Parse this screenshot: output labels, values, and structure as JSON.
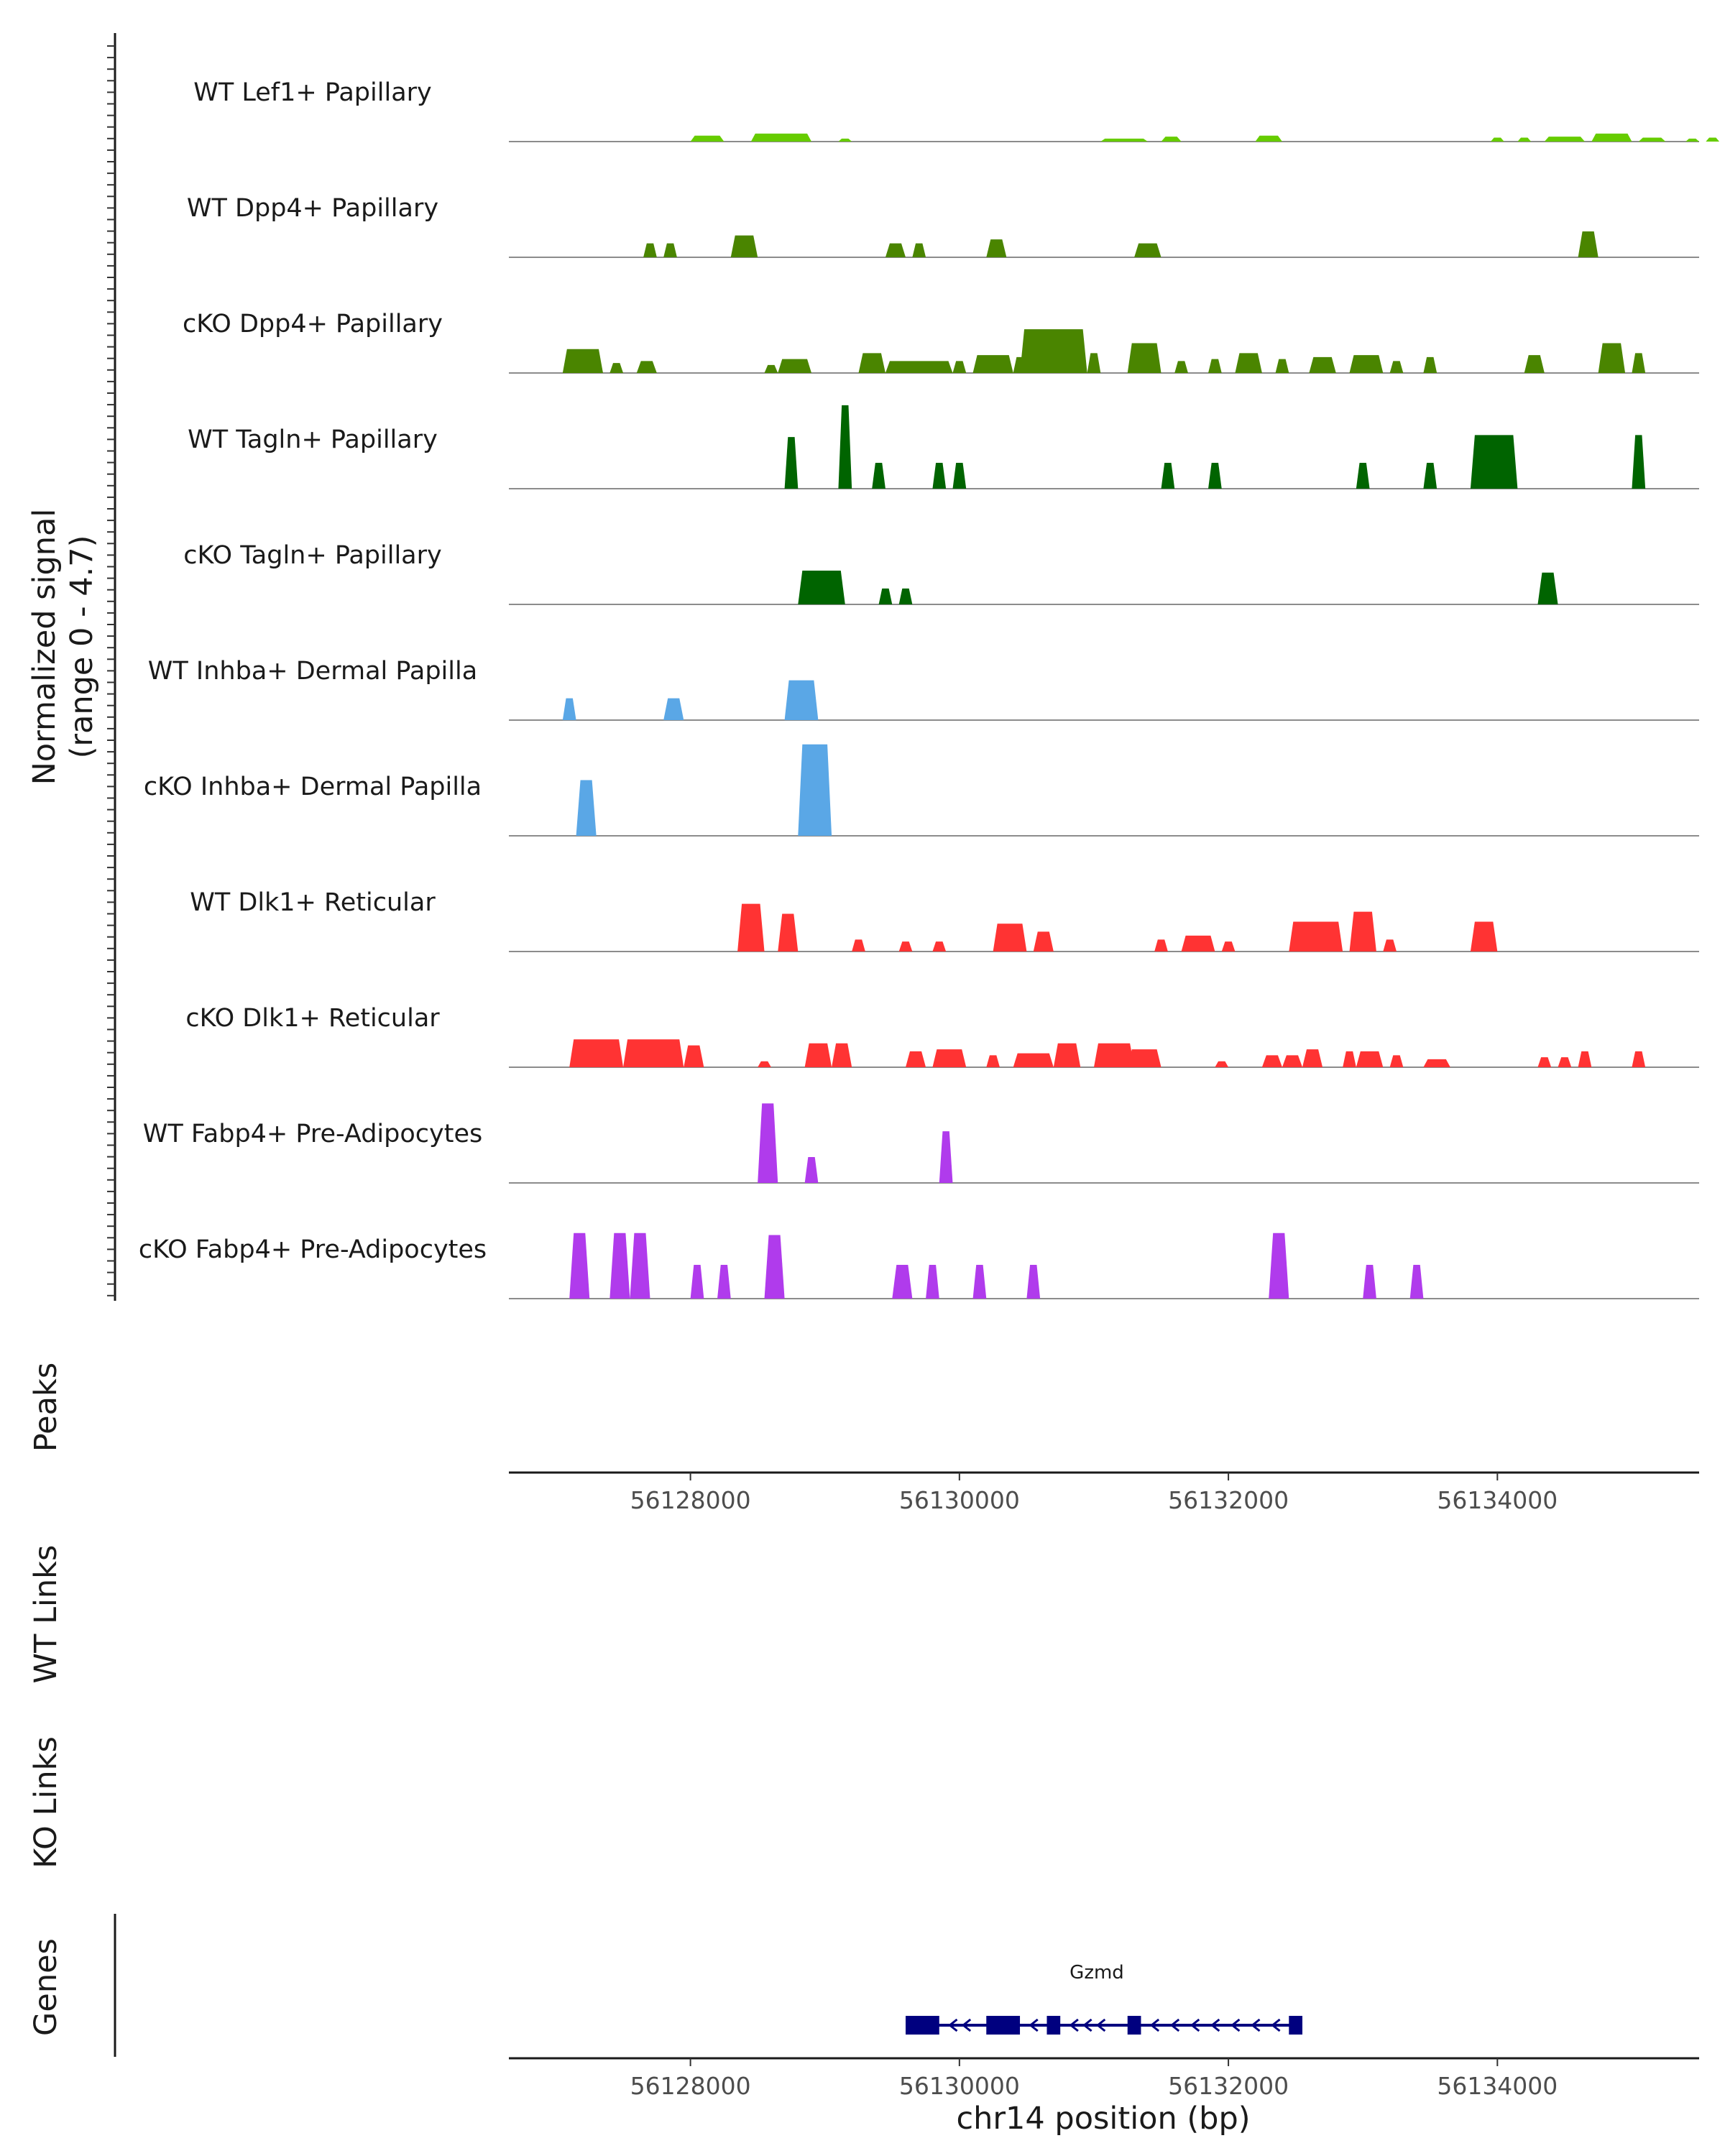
{
  "chart_data": {
    "type": "area",
    "genomic_range": [
      56126650,
      56135500
    ],
    "xlabel": "chr14 position (bp)",
    "x_ticks": [
      56128000,
      56130000,
      56132000,
      56134000
    ],
    "x_tick_labels": [
      "56128000",
      "56130000",
      "56132000",
      "56134000"
    ],
    "signal_axis": {
      "title_line1": "Normalized signal",
      "title_line2": "(range 0 - 4.7)",
      "range": [
        0,
        4.7
      ]
    },
    "peaks_label": "Peaks",
    "wt_links_label": "WT Links",
    "ko_links_label": "KO Links",
    "genes_label": "Genes",
    "tracks": [
      {
        "name": "WT Lef1+ Papillary",
        "color": "#66cc00",
        "blocks": [
          [
            56128000,
            56128250,
            0.3
          ],
          [
            56128450,
            56128900,
            0.4
          ],
          [
            56129100,
            56129200,
            0.15
          ],
          [
            56131050,
            56131400,
            0.15
          ],
          [
            56131500,
            56131650,
            0.25
          ],
          [
            56132200,
            56132400,
            0.3
          ],
          [
            56133950,
            56134050,
            0.2
          ],
          [
            56134150,
            56134250,
            0.2
          ],
          [
            56134350,
            56134650,
            0.25
          ],
          [
            56134700,
            56135000,
            0.4
          ],
          [
            56135050,
            56135250,
            0.2
          ],
          [
            56135400,
            56135500,
            0.15
          ],
          [
            56135550,
            56135650,
            0.2
          ]
        ]
      },
      {
        "name": "WT Dpp4+ Papillary",
        "color": "#4a8500",
        "blocks": [
          [
            56127650,
            56127750,
            0.7
          ],
          [
            56127800,
            56127900,
            0.7
          ],
          [
            56128300,
            56128500,
            1.1
          ],
          [
            56129450,
            56129600,
            0.7
          ],
          [
            56129650,
            56129750,
            0.7
          ],
          [
            56130200,
            56130350,
            0.9
          ],
          [
            56131300,
            56131500,
            0.7
          ],
          [
            56134600,
            56134750,
            1.3
          ]
        ]
      },
      {
        "name": "cKO Dpp4+ Papillary",
        "color": "#4a8500",
        "blocks": [
          [
            56127050,
            56127350,
            1.2
          ],
          [
            56127400,
            56127500,
            0.5
          ],
          [
            56127600,
            56127750,
            0.6
          ],
          [
            56128550,
            56128650,
            0.4
          ],
          [
            56128650,
            56128900,
            0.7
          ],
          [
            56129250,
            56129450,
            1.0
          ],
          [
            56129450,
            56129950,
            0.6
          ],
          [
            56129950,
            56130050,
            0.6
          ],
          [
            56130100,
            56130400,
            0.9
          ],
          [
            56130400,
            56130500,
            0.8
          ],
          [
            56130450,
            56130950,
            2.2
          ],
          [
            56130950,
            56131050,
            1.0
          ],
          [
            56131250,
            56131500,
            1.5
          ],
          [
            56131600,
            56131700,
            0.6
          ],
          [
            56131850,
            56131950,
            0.7
          ],
          [
            56132050,
            56132250,
            1.0
          ],
          [
            56132350,
            56132450,
            0.7
          ],
          [
            56132600,
            56132800,
            0.8
          ],
          [
            56132900,
            56133150,
            0.9
          ],
          [
            56133200,
            56133300,
            0.6
          ],
          [
            56133450,
            56133550,
            0.8
          ],
          [
            56134200,
            56134350,
            0.9
          ],
          [
            56134750,
            56134950,
            1.5
          ],
          [
            56135000,
            56135100,
            1.0
          ]
        ]
      },
      {
        "name": "WT Tagln+ Papillary",
        "color": "#006400",
        "blocks": [
          [
            56128700,
            56128800,
            2.6
          ],
          [
            56129100,
            56129200,
            4.2
          ],
          [
            56129350,
            56129450,
            1.3
          ],
          [
            56129800,
            56129900,
            1.3
          ],
          [
            56129950,
            56130050,
            1.3
          ],
          [
            56131500,
            56131600,
            1.3
          ],
          [
            56131850,
            56131950,
            1.3
          ],
          [
            56132950,
            56133050,
            1.3
          ],
          [
            56133450,
            56133550,
            1.3
          ],
          [
            56133800,
            56134150,
            2.7
          ],
          [
            56135000,
            56135100,
            2.7
          ]
        ]
      },
      {
        "name": "cKO Tagln+ Papillary",
        "color": "#006400",
        "blocks": [
          [
            56128800,
            56129150,
            1.7
          ],
          [
            56129400,
            56129500,
            0.8
          ],
          [
            56129550,
            56129650,
            0.8
          ],
          [
            56134300,
            56134450,
            1.6
          ]
        ]
      },
      {
        "name": "WT Inhba+ Dermal Papilla",
        "color": "#5aa7e6",
        "blocks": [
          [
            56127050,
            56127150,
            1.1
          ],
          [
            56127800,
            56127950,
            1.1
          ],
          [
            56128700,
            56128950,
            2.0
          ]
        ]
      },
      {
        "name": "cKO Inhba+ Dermal Papilla",
        "color": "#5aa7e6",
        "blocks": [
          [
            56127150,
            56127300,
            2.8
          ],
          [
            56128800,
            56129050,
            4.6
          ]
        ]
      },
      {
        "name": "WT Dlk1+ Reticular",
        "color": "#ff3333",
        "blocks": [
          [
            56128350,
            56128550,
            2.4
          ],
          [
            56128650,
            56128800,
            1.9
          ],
          [
            56129200,
            56129300,
            0.6
          ],
          [
            56129550,
            56129650,
            0.5
          ],
          [
            56129800,
            56129900,
            0.5
          ],
          [
            56130250,
            56130500,
            1.4
          ],
          [
            56130550,
            56130700,
            1.0
          ],
          [
            56131450,
            56131550,
            0.6
          ],
          [
            56131650,
            56131900,
            0.8
          ],
          [
            56131950,
            56132050,
            0.5
          ],
          [
            56132450,
            56132850,
            1.5
          ],
          [
            56132900,
            56133100,
            2.0
          ],
          [
            56133150,
            56133250,
            0.6
          ],
          [
            56133800,
            56134000,
            1.5
          ]
        ]
      },
      {
        "name": "cKO Dlk1+ Reticular",
        "color": "#ff3333",
        "blocks": [
          [
            56127100,
            56127500,
            1.4
          ],
          [
            56127500,
            56127950,
            1.4
          ],
          [
            56127950,
            56128100,
            1.1
          ],
          [
            56128500,
            56128600,
            0.3
          ],
          [
            56128850,
            56129050,
            1.2
          ],
          [
            56129050,
            56129200,
            1.2
          ],
          [
            56129600,
            56129750,
            0.8
          ],
          [
            56129800,
            56130050,
            0.9
          ],
          [
            56130200,
            56130300,
            0.6
          ],
          [
            56130400,
            56130700,
            0.7
          ],
          [
            56130700,
            56130900,
            1.2
          ],
          [
            56131000,
            56131300,
            1.2
          ],
          [
            56131250,
            56131500,
            0.9
          ],
          [
            56131900,
            56132000,
            0.3
          ],
          [
            56132250,
            56132400,
            0.6
          ],
          [
            56132400,
            56132550,
            0.6
          ],
          [
            56132550,
            56132700,
            0.9
          ],
          [
            56132850,
            56132950,
            0.8
          ],
          [
            56132950,
            56133150,
            0.8
          ],
          [
            56133200,
            56133300,
            0.6
          ],
          [
            56133450,
            56133650,
            0.4
          ],
          [
            56134300,
            56134400,
            0.5
          ],
          [
            56134450,
            56134550,
            0.5
          ],
          [
            56134600,
            56134700,
            0.8
          ],
          [
            56135000,
            56135100,
            0.8
          ]
        ]
      },
      {
        "name": "WT Fabp4+ Pre-Adipocytes",
        "color": "#b03bec",
        "blocks": [
          [
            56128500,
            56128650,
            4.0
          ],
          [
            56128850,
            56128950,
            1.3
          ],
          [
            56129850,
            56129950,
            2.6
          ]
        ]
      },
      {
        "name": "cKO Fabp4+ Pre-Adipocytes",
        "color": "#b03bec",
        "blocks": [
          [
            56127100,
            56127250,
            3.3
          ],
          [
            56127400,
            56127550,
            3.3
          ],
          [
            56127550,
            56127700,
            3.3
          ],
          [
            56128000,
            56128100,
            1.7
          ],
          [
            56128200,
            56128300,
            1.7
          ],
          [
            56128550,
            56128700,
            3.2
          ],
          [
            56129500,
            56129650,
            1.7
          ],
          [
            56129750,
            56129850,
            1.7
          ],
          [
            56130100,
            56130200,
            1.7
          ],
          [
            56130500,
            56130600,
            1.7
          ],
          [
            56132300,
            56132450,
            3.3
          ],
          [
            56133000,
            56133100,
            1.7
          ],
          [
            56133350,
            56133450,
            1.7
          ]
        ]
      }
    ],
    "gene": {
      "name": "Gzmd",
      "color": "#00007f",
      "strand": "-",
      "start": 56129600,
      "end": 56132550,
      "exons": [
        [
          56129600,
          56129850
        ],
        [
          56130200,
          56130450
        ],
        [
          56130650,
          56130750
        ],
        [
          56131250,
          56131350
        ],
        [
          56132450,
          56132550
        ]
      ]
    }
  }
}
